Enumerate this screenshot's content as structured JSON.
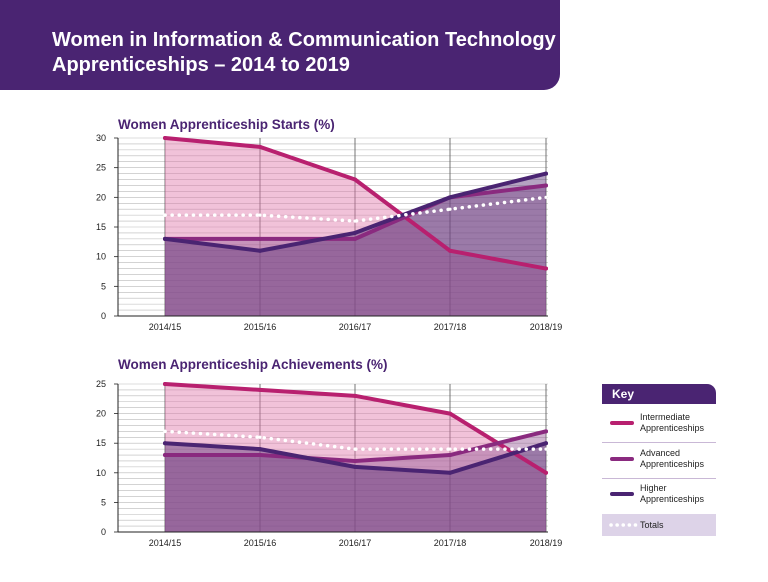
{
  "header": {
    "title_line1": "Women in Information & Communication Technology",
    "title_line2": "Apprenticeships – 2014 to 2019"
  },
  "key": {
    "title": "Key",
    "items": [
      {
        "label1": "Intermediate",
        "label2": "Apprenticeships",
        "color": "#b8206f",
        "style": "solid"
      },
      {
        "label1": "Advanced",
        "label2": "Apprenticeships",
        "color": "#8a2a7f",
        "style": "solid"
      },
      {
        "label1": "Higher",
        "label2": "Apprenticeships",
        "color": "#4a2472",
        "style": "solid"
      },
      {
        "label1": "Totals",
        "label2": "",
        "color": "#ffffff",
        "style": "dotted"
      }
    ]
  },
  "chart_data": [
    {
      "type": "line",
      "title": "Women Apprenticeship Starts (%)",
      "categories": [
        "2014/15",
        "2015/16",
        "2016/17",
        "2017/18",
        "2018/19"
      ],
      "ylim": [
        0,
        30
      ],
      "yticks": [
        0,
        5,
        10,
        15,
        20,
        25,
        30
      ],
      "grid": true,
      "legend": "right",
      "series": [
        {
          "name": "Intermediate Apprenticeships",
          "values": [
            30,
            28.5,
            23,
            11,
            8
          ],
          "color": "#b8206f"
        },
        {
          "name": "Advanced Apprenticeships",
          "values": [
            13,
            13,
            13,
            20,
            22
          ],
          "color": "#8a2a7f"
        },
        {
          "name": "Higher Apprenticeships",
          "values": [
            13,
            11,
            14,
            20,
            24
          ],
          "color": "#4a2472"
        },
        {
          "name": "Totals",
          "values": [
            17,
            17,
            16,
            18,
            20
          ],
          "color": "#ffffff",
          "dotted": true
        }
      ]
    },
    {
      "type": "line",
      "title": "Women Apprenticeship Achievements (%)",
      "categories": [
        "2014/15",
        "2015/16",
        "2016/17",
        "2017/18",
        "2018/19"
      ],
      "ylim": [
        0,
        25
      ],
      "yticks": [
        0,
        5,
        10,
        15,
        20,
        25
      ],
      "grid": true,
      "legend": "right",
      "series": [
        {
          "name": "Intermediate Apprenticeships",
          "values": [
            25,
            24,
            23,
            20,
            10
          ],
          "color": "#b8206f"
        },
        {
          "name": "Advanced Apprenticeships",
          "values": [
            13,
            13,
            12,
            13,
            17
          ],
          "color": "#8a2a7f"
        },
        {
          "name": "Higher Apprenticeships",
          "values": [
            15,
            14,
            11,
            10,
            15
          ],
          "color": "#4a2472"
        },
        {
          "name": "Totals",
          "values": [
            17,
            16,
            14,
            14,
            14
          ],
          "color": "#ffffff",
          "dotted": true
        }
      ]
    }
  ]
}
